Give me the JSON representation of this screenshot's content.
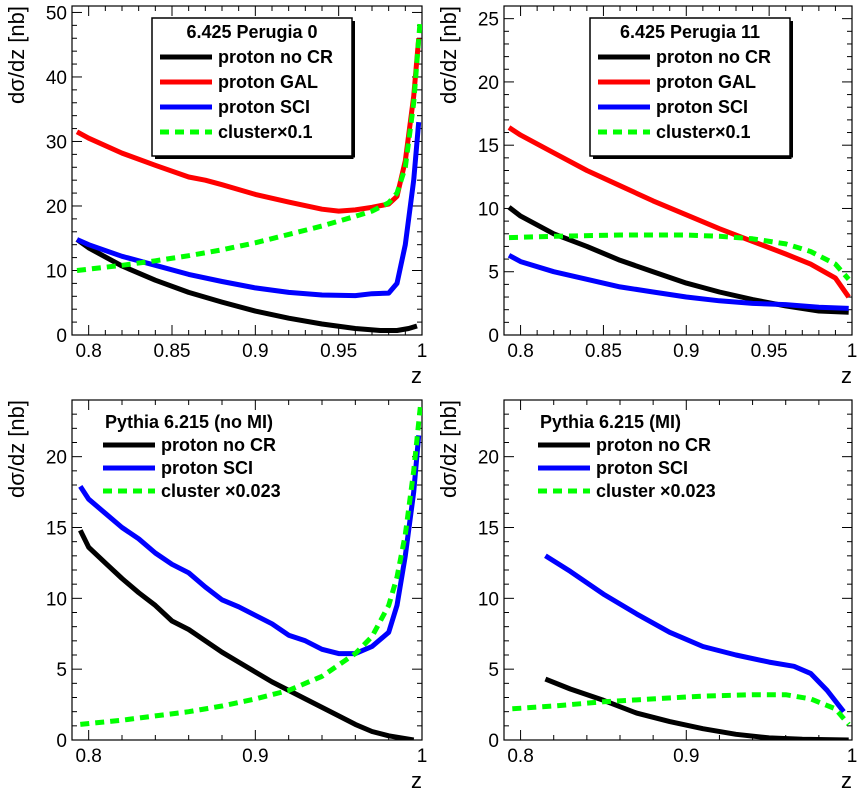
{
  "chart_data": [
    {
      "type": "line",
      "panel": "top-left",
      "legend_title": "6.425 Perugia 0",
      "legend_boxed": true,
      "xlabel": "z",
      "ylabel": "dσ/dz [nb]",
      "xlim": [
        0.79,
        1.0
      ],
      "ylim": [
        0,
        51
      ],
      "xticks": [
        0.8,
        0.85,
        0.9,
        0.95,
        1.0
      ],
      "xtick_labels": [
        "0.8",
        "0.85",
        "0.9",
        "0.95",
        "1"
      ],
      "yticks": [
        0,
        10,
        20,
        30,
        40,
        50
      ],
      "ytick_labels": [
        "0",
        "10",
        "20",
        "30",
        "40",
        "50"
      ],
      "series": [
        {
          "name": "proton no CR",
          "color": "#000000",
          "dash": "solid",
          "points": [
            [
              0.793,
              14.8
            ],
            [
              0.8,
              13.5
            ],
            [
              0.82,
              10.7
            ],
            [
              0.84,
              8.5
            ],
            [
              0.86,
              6.6
            ],
            [
              0.88,
              5.1
            ],
            [
              0.9,
              3.7
            ],
            [
              0.92,
              2.6
            ],
            [
              0.94,
              1.7
            ],
            [
              0.96,
              1.0
            ],
            [
              0.975,
              0.7
            ],
            [
              0.985,
              0.7
            ],
            [
              0.992,
              1.0
            ],
            [
              0.997,
              1.4
            ]
          ]
        },
        {
          "name": "proton GAL",
          "color": "#ff0000",
          "dash": "solid",
          "points": [
            [
              0.793,
              31.5
            ],
            [
              0.8,
              30.5
            ],
            [
              0.82,
              28.2
            ],
            [
              0.84,
              26.3
            ],
            [
              0.86,
              24.5
            ],
            [
              0.87,
              24.0
            ],
            [
              0.88,
              23.3
            ],
            [
              0.9,
              21.8
            ],
            [
              0.92,
              20.6
            ],
            [
              0.94,
              19.5
            ],
            [
              0.95,
              19.2
            ],
            [
              0.96,
              19.4
            ],
            [
              0.97,
              19.8
            ],
            [
              0.98,
              20.3
            ],
            [
              0.985,
              21.5
            ],
            [
              0.99,
              27.0
            ],
            [
              0.995,
              37.0
            ],
            [
              0.998,
              46.0
            ]
          ]
        },
        {
          "name": "proton SCI",
          "color": "#0000ff",
          "dash": "solid",
          "points": [
            [
              0.793,
              14.8
            ],
            [
              0.8,
              14.0
            ],
            [
              0.82,
              12.2
            ],
            [
              0.84,
              10.8
            ],
            [
              0.86,
              9.4
            ],
            [
              0.88,
              8.3
            ],
            [
              0.9,
              7.3
            ],
            [
              0.92,
              6.6
            ],
            [
              0.94,
              6.2
            ],
            [
              0.96,
              6.1
            ],
            [
              0.97,
              6.4
            ],
            [
              0.98,
              6.5
            ],
            [
              0.985,
              8.0
            ],
            [
              0.99,
              14.0
            ],
            [
              0.995,
              24.0
            ],
            [
              0.998,
              33.0
            ]
          ]
        },
        {
          "name": "cluster×0.1",
          "color": "#00ff00",
          "dash": "dashed",
          "points": [
            [
              0.793,
              10.0
            ],
            [
              0.82,
              10.8
            ],
            [
              0.84,
              11.5
            ],
            [
              0.86,
              12.3
            ],
            [
              0.88,
              13.2
            ],
            [
              0.9,
              14.3
            ],
            [
              0.92,
              15.6
            ],
            [
              0.94,
              16.9
            ],
            [
              0.96,
              18.4
            ],
            [
              0.97,
              19.2
            ],
            [
              0.98,
              20.5
            ],
            [
              0.985,
              22.0
            ],
            [
              0.99,
              26.0
            ],
            [
              0.995,
              36.0
            ],
            [
              0.999,
              49.0
            ]
          ]
        }
      ]
    },
    {
      "type": "line",
      "panel": "top-right",
      "legend_title": "6.425 Perugia 11",
      "legend_boxed": true,
      "xlabel": "z",
      "ylabel": "dσ/dz [nb]",
      "xlim": [
        0.79,
        1.0
      ],
      "ylim": [
        0,
        26
      ],
      "xticks": [
        0.8,
        0.85,
        0.9,
        0.95,
        1.0
      ],
      "xtick_labels": [
        "0.8",
        "0.85",
        "0.9",
        "0.95",
        "1"
      ],
      "yticks": [
        0,
        5,
        10,
        15,
        20,
        25
      ],
      "ytick_labels": [
        "0",
        "5",
        "10",
        "15",
        "20",
        "25"
      ],
      "series": [
        {
          "name": "proton no CR",
          "color": "#000000",
          "dash": "solid",
          "points": [
            [
              0.793,
              10.1
            ],
            [
              0.8,
              9.4
            ],
            [
              0.82,
              8.0
            ],
            [
              0.84,
              7.0
            ],
            [
              0.86,
              5.9
            ],
            [
              0.88,
              5.0
            ],
            [
              0.9,
              4.1
            ],
            [
              0.92,
              3.4
            ],
            [
              0.94,
              2.8
            ],
            [
              0.96,
              2.3
            ],
            [
              0.98,
              1.9
            ],
            [
              0.998,
              1.8
            ]
          ]
        },
        {
          "name": "proton GAL",
          "color": "#ff0000",
          "dash": "solid",
          "points": [
            [
              0.793,
              16.4
            ],
            [
              0.8,
              15.8
            ],
            [
              0.82,
              14.4
            ],
            [
              0.84,
              13.0
            ],
            [
              0.86,
              11.8
            ],
            [
              0.88,
              10.6
            ],
            [
              0.9,
              9.5
            ],
            [
              0.92,
              8.4
            ],
            [
              0.94,
              7.4
            ],
            [
              0.96,
              6.4
            ],
            [
              0.975,
              5.6
            ],
            [
              0.99,
              4.5
            ],
            [
              0.998,
              3.0
            ]
          ]
        },
        {
          "name": "proton SCI",
          "color": "#0000ff",
          "dash": "solid",
          "points": [
            [
              0.793,
              6.3
            ],
            [
              0.8,
              5.8
            ],
            [
              0.82,
              5.0
            ],
            [
              0.84,
              4.4
            ],
            [
              0.86,
              3.8
            ],
            [
              0.88,
              3.4
            ],
            [
              0.9,
              3.0
            ],
            [
              0.92,
              2.7
            ],
            [
              0.94,
              2.5
            ],
            [
              0.96,
              2.4
            ],
            [
              0.98,
              2.2
            ],
            [
              0.998,
              2.1
            ]
          ]
        },
        {
          "name": "cluster×0.1",
          "color": "#00ff00",
          "dash": "dashed",
          "points": [
            [
              0.793,
              7.7
            ],
            [
              0.82,
              7.8
            ],
            [
              0.86,
              7.9
            ],
            [
              0.9,
              7.9
            ],
            [
              0.92,
              7.8
            ],
            [
              0.94,
              7.6
            ],
            [
              0.96,
              7.2
            ],
            [
              0.975,
              6.6
            ],
            [
              0.99,
              5.6
            ],
            [
              0.998,
              4.4
            ]
          ]
        }
      ]
    },
    {
      "type": "line",
      "panel": "bottom-left",
      "legend_title": "Pythia 6.215 (no MI)",
      "legend_boxed": false,
      "xlabel": "z",
      "ylabel": "dσ/dz [nb]",
      "xlim": [
        0.79,
        1.0
      ],
      "ylim": [
        0,
        24
      ],
      "xticks": [
        0.8,
        0.9,
        1.0
      ],
      "xtick_labels": [
        "0.8",
        "0.9",
        "1"
      ],
      "yticks": [
        0,
        5,
        10,
        15,
        20
      ],
      "ytick_labels": [
        "0",
        "5",
        "10",
        "15",
        "20"
      ],
      "series": [
        {
          "name": "proton no CR",
          "color": "#000000",
          "dash": "solid",
          "points": [
            [
              0.795,
              14.8
            ],
            [
              0.8,
              13.6
            ],
            [
              0.81,
              12.5
            ],
            [
              0.82,
              11.4
            ],
            [
              0.83,
              10.4
            ],
            [
              0.84,
              9.5
            ],
            [
              0.85,
              8.4
            ],
            [
              0.86,
              7.8
            ],
            [
              0.87,
              7.0
            ],
            [
              0.88,
              6.2
            ],
            [
              0.89,
              5.5
            ],
            [
              0.9,
              4.8
            ],
            [
              0.91,
              4.1
            ],
            [
              0.92,
              3.5
            ],
            [
              0.93,
              2.9
            ],
            [
              0.94,
              2.3
            ],
            [
              0.95,
              1.7
            ],
            [
              0.96,
              1.1
            ],
            [
              0.97,
              0.6
            ],
            [
              0.98,
              0.3
            ],
            [
              0.99,
              0.1
            ],
            [
              0.995,
              0.0
            ]
          ]
        },
        {
          "name": "proton SCI",
          "color": "#0000ff",
          "dash": "solid",
          "points": [
            [
              0.795,
              17.9
            ],
            [
              0.8,
              17.0
            ],
            [
              0.81,
              16.0
            ],
            [
              0.82,
              15.0
            ],
            [
              0.83,
              14.2
            ],
            [
              0.84,
              13.2
            ],
            [
              0.85,
              12.4
            ],
            [
              0.86,
              11.8
            ],
            [
              0.87,
              10.8
            ],
            [
              0.88,
              9.9
            ],
            [
              0.89,
              9.4
            ],
            [
              0.9,
              8.8
            ],
            [
              0.91,
              8.2
            ],
            [
              0.92,
              7.4
            ],
            [
              0.93,
              7.0
            ],
            [
              0.94,
              6.4
            ],
            [
              0.95,
              6.1
            ],
            [
              0.96,
              6.1
            ],
            [
              0.97,
              6.6
            ],
            [
              0.98,
              7.6
            ],
            [
              0.985,
              9.5
            ],
            [
              0.99,
              13.0
            ],
            [
              0.995,
              17.5
            ],
            [
              0.998,
              21.5
            ]
          ]
        },
        {
          "name": "cluster ×0.023",
          "color": "#00ff00",
          "dash": "dashed",
          "points": [
            [
              0.795,
              1.1
            ],
            [
              0.82,
              1.4
            ],
            [
              0.84,
              1.7
            ],
            [
              0.86,
              2.0
            ],
            [
              0.88,
              2.4
            ],
            [
              0.9,
              2.9
            ],
            [
              0.92,
              3.5
            ],
            [
              0.94,
              4.5
            ],
            [
              0.96,
              6.1
            ],
            [
              0.97,
              7.3
            ],
            [
              0.98,
              9.5
            ],
            [
              0.985,
              11.5
            ],
            [
              0.99,
              14.5
            ],
            [
              0.995,
              19.0
            ],
            [
              0.999,
              23.5
            ]
          ]
        }
      ]
    },
    {
      "type": "line",
      "panel": "bottom-right",
      "legend_title": "Pythia 6.215 (MI)",
      "legend_boxed": false,
      "xlabel": "z",
      "ylabel": "dσ/dz [nb]",
      "xlim": [
        0.79,
        1.0
      ],
      "ylim": [
        0,
        24
      ],
      "xticks": [
        0.8,
        0.9,
        1.0
      ],
      "xtick_labels": [
        "0.8",
        "0.9",
        "1"
      ],
      "yticks": [
        0,
        5,
        10,
        15,
        20
      ],
      "ytick_labels": [
        "0",
        "5",
        "10",
        "15",
        "20"
      ],
      "series": [
        {
          "name": "proton no CR",
          "color": "#000000",
          "dash": "solid",
          "points": [
            [
              0.815,
              4.3
            ],
            [
              0.83,
              3.6
            ],
            [
              0.85,
              2.8
            ],
            [
              0.87,
              1.9
            ],
            [
              0.89,
              1.3
            ],
            [
              0.91,
              0.8
            ],
            [
              0.93,
              0.4
            ],
            [
              0.95,
              0.15
            ],
            [
              0.97,
              0.05
            ],
            [
              0.998,
              0.0
            ]
          ]
        },
        {
          "name": "proton SCI",
          "color": "#0000ff",
          "dash": "solid",
          "points": [
            [
              0.815,
              13.0
            ],
            [
              0.83,
              11.9
            ],
            [
              0.85,
              10.3
            ],
            [
              0.87,
              8.9
            ],
            [
              0.89,
              7.6
            ],
            [
              0.91,
              6.6
            ],
            [
              0.93,
              6.0
            ],
            [
              0.95,
              5.5
            ],
            [
              0.965,
              5.2
            ],
            [
              0.975,
              4.7
            ],
            [
              0.985,
              3.5
            ],
            [
              0.995,
              2.0
            ]
          ]
        },
        {
          "name": "cluster ×0.023",
          "color": "#00ff00",
          "dash": "dashed",
          "points": [
            [
              0.795,
              2.2
            ],
            [
              0.82,
              2.4
            ],
            [
              0.85,
              2.7
            ],
            [
              0.88,
              2.9
            ],
            [
              0.91,
              3.1
            ],
            [
              0.94,
              3.2
            ],
            [
              0.96,
              3.2
            ],
            [
              0.975,
              2.9
            ],
            [
              0.99,
              2.2
            ],
            [
              0.998,
              1.1
            ]
          ]
        }
      ]
    }
  ]
}
